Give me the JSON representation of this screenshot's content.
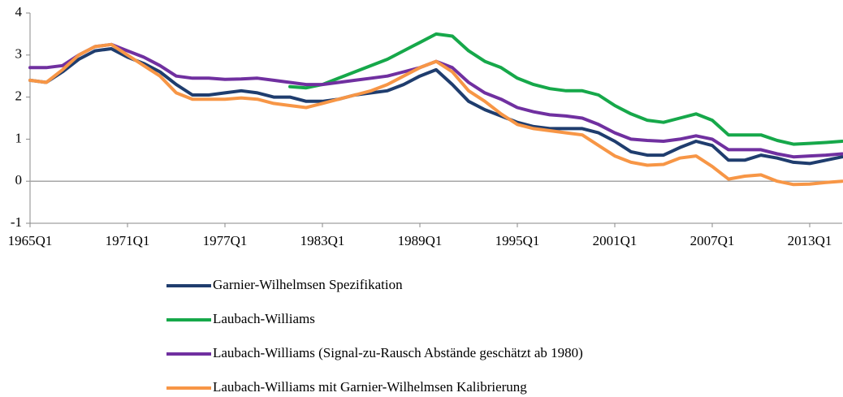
{
  "chart_data": {
    "type": "line",
    "categories": [
      "1965Q1",
      null,
      null,
      null,
      null,
      null,
      "1971Q1",
      null,
      null,
      null,
      null,
      null,
      "1977Q1",
      null,
      null,
      null,
      null,
      null,
      "1983Q1",
      null,
      null,
      null,
      null,
      null,
      "1989Q1",
      null,
      null,
      null,
      null,
      null,
      "1995Q1",
      null,
      null,
      null,
      null,
      null,
      "2001Q1",
      null,
      null,
      null,
      null,
      null,
      "2007Q1",
      null,
      null,
      null,
      null,
      null,
      "2013Q1",
      null,
      null
    ],
    "series": [
      {
        "name": "Garnier-Wilhelmsen Spezifikation",
        "color": "#1f3d6e",
        "values": [
          2.4,
          2.35,
          2.6,
          2.9,
          3.1,
          3.15,
          2.95,
          2.8,
          2.6,
          2.3,
          2.05,
          2.05,
          2.1,
          2.15,
          2.1,
          2.0,
          2.0,
          1.9,
          1.9,
          1.95,
          2.05,
          2.1,
          2.15,
          2.3,
          2.5,
          2.65,
          2.3,
          1.9,
          1.7,
          1.55,
          1.4,
          1.3,
          1.25,
          1.25,
          1.25,
          1.15,
          0.95,
          0.7,
          0.62,
          0.62,
          0.8,
          0.95,
          0.85,
          0.5,
          0.5,
          0.62,
          0.55,
          0.45,
          0.42,
          0.5,
          0.58
        ]
      },
      {
        "name": "Laubach-Williams",
        "color": "#16a84a",
        "values": [
          null,
          null,
          null,
          null,
          null,
          null,
          null,
          null,
          null,
          null,
          null,
          null,
          null,
          null,
          null,
          null,
          2.25,
          2.22,
          2.3,
          2.45,
          2.6,
          2.75,
          2.9,
          3.1,
          3.3,
          3.5,
          3.45,
          3.1,
          2.85,
          2.7,
          2.45,
          2.3,
          2.2,
          2.15,
          2.15,
          2.05,
          1.8,
          1.6,
          1.45,
          1.4,
          1.5,
          1.6,
          1.45,
          1.1,
          1.1,
          1.1,
          0.97,
          0.88,
          0.9,
          0.92,
          0.95
        ]
      },
      {
        "name": "Laubach-Williams (Signal-zu-Rausch Abstände geschätzt ab 1980)",
        "color": "#7030a0",
        "values": [
          2.7,
          2.7,
          2.75,
          3.0,
          3.2,
          3.25,
          3.1,
          2.95,
          2.75,
          2.5,
          2.45,
          2.45,
          2.42,
          2.43,
          2.45,
          2.4,
          2.35,
          2.3,
          2.3,
          2.35,
          2.4,
          2.45,
          2.5,
          2.6,
          2.7,
          2.85,
          2.7,
          2.35,
          2.1,
          1.95,
          1.75,
          1.65,
          1.58,
          1.55,
          1.5,
          1.35,
          1.15,
          1.0,
          0.97,
          0.95,
          1.0,
          1.08,
          1.0,
          0.75,
          0.75,
          0.75,
          0.65,
          0.58,
          0.6,
          0.62,
          0.65
        ]
      },
      {
        "name": "Laubach-Williams mit Garnier-Wilhelmsen Kalibrierung",
        "color": "#f79646",
        "values": [
          2.4,
          2.35,
          2.65,
          3.0,
          3.2,
          3.25,
          3.0,
          2.75,
          2.5,
          2.1,
          1.95,
          1.95,
          1.95,
          1.98,
          1.95,
          1.85,
          1.8,
          1.75,
          1.85,
          1.95,
          2.05,
          2.15,
          2.3,
          2.5,
          2.7,
          2.85,
          2.6,
          2.15,
          1.9,
          1.6,
          1.35,
          1.25,
          1.2,
          1.15,
          1.1,
          0.85,
          0.6,
          0.45,
          0.38,
          0.4,
          0.55,
          0.6,
          0.35,
          0.05,
          0.12,
          0.15,
          0.0,
          -0.08,
          -0.07,
          -0.03,
          0.0
        ]
      }
    ],
    "ylim": [
      -1,
      4
    ],
    "yticks": [
      -1,
      0,
      1,
      2,
      3,
      4
    ]
  }
}
